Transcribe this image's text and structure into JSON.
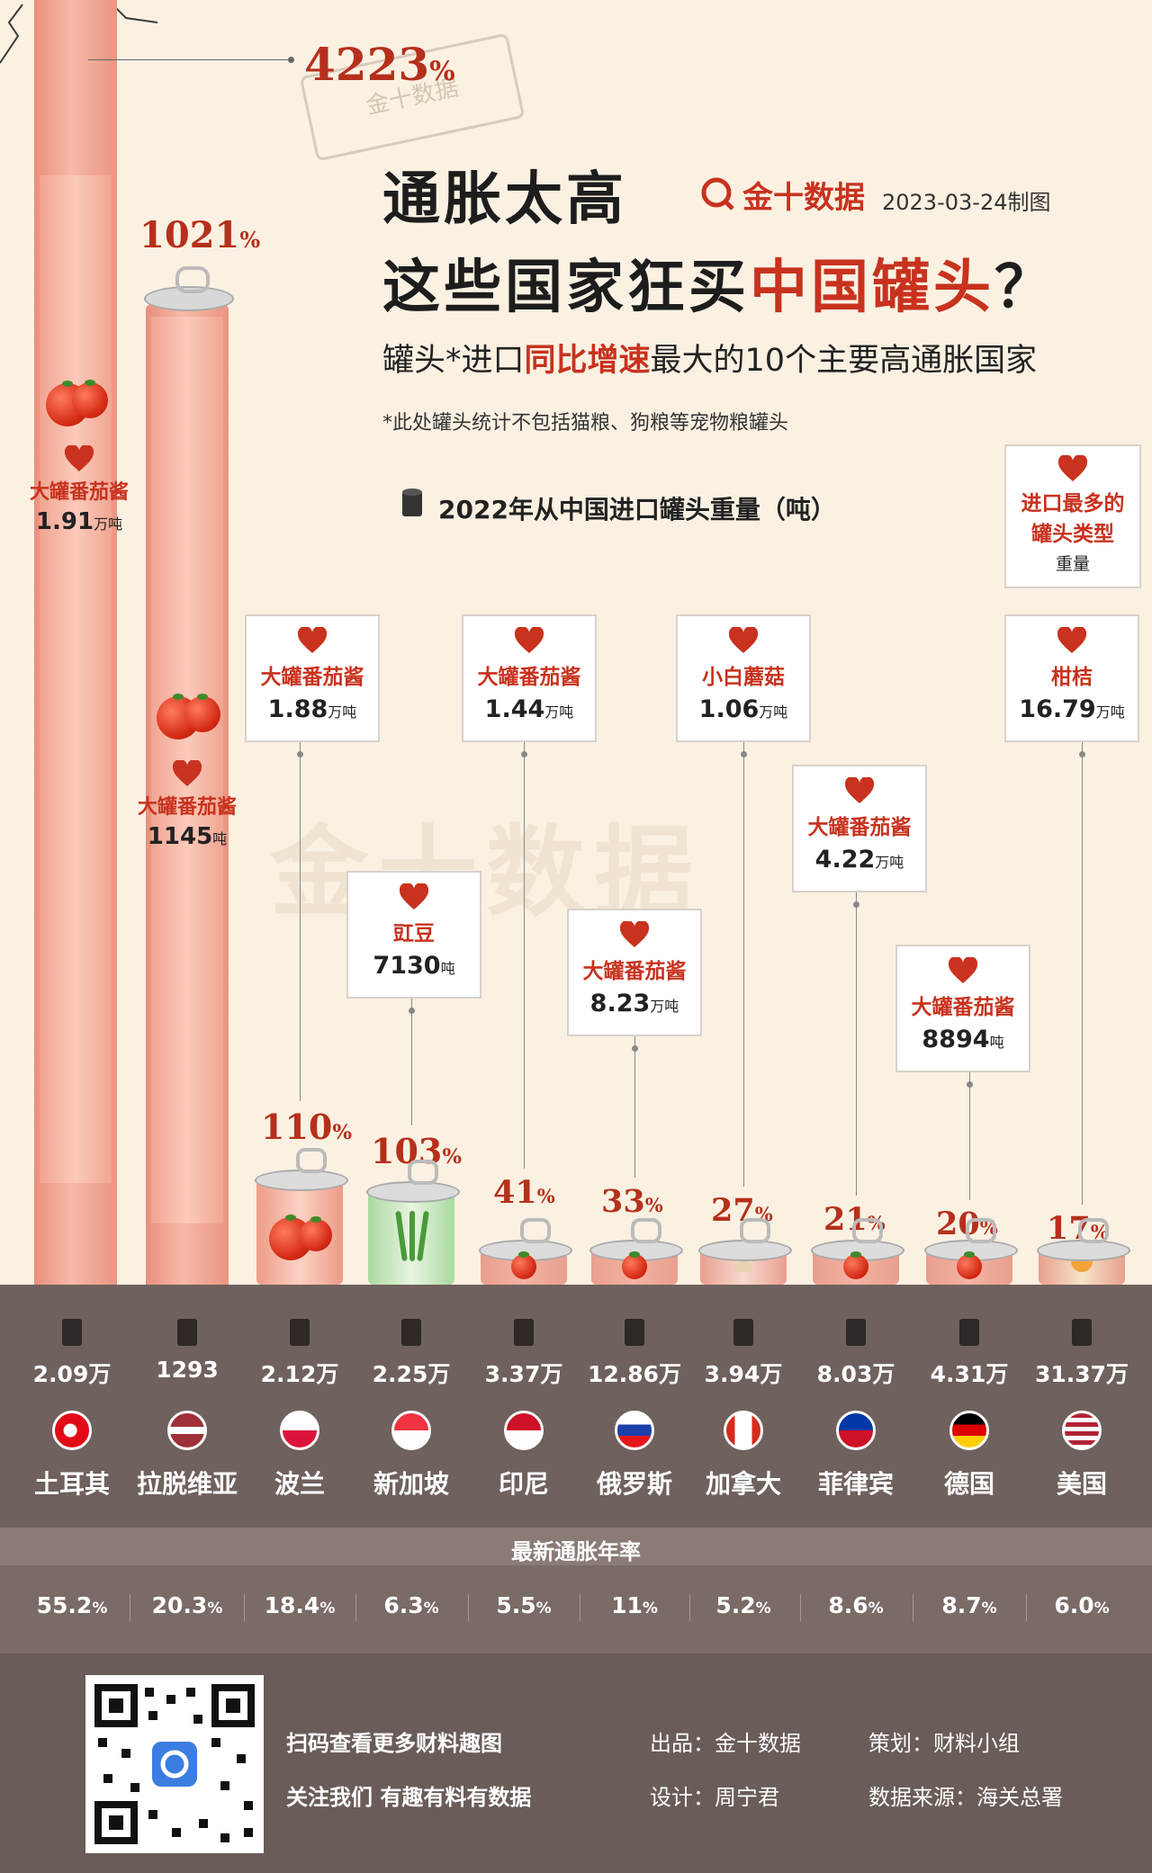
{
  "header": {
    "title_line1": "通胀太高",
    "title_line2_a": "这些国家狂买",
    "title_line2_b": "中国罐头",
    "title_line2_c": "？",
    "subtitle_a": "罐头*进口",
    "subtitle_b": "同比增速",
    "subtitle_c": "最大的10个主要高通胀国家",
    "note": "*此处罐头统计不包括猫粮、狗粮等宠物粮罐头",
    "brand": "金十数据",
    "date": "2023-03-24制图",
    "legend_title": "2022年从中国进口罐头重量（吨）",
    "stamp": "金十数据"
  },
  "type_legend": {
    "line1": "进口最多的",
    "line2": "罐头类型",
    "line3": "重量"
  },
  "chart_data": {
    "type": "bar",
    "title": "通胀太高 这些国家狂买中国罐头？",
    "subtitle": "罐头*进口同比增速最大的10个主要高通胀国家",
    "categories": [
      "土耳其",
      "拉脱维亚",
      "波兰",
      "新加坡",
      "印尼",
      "俄罗斯",
      "加拿大",
      "菲律宾",
      "德国",
      "美国"
    ],
    "series": [
      {
        "name": "同比增速",
        "values": [
          4223,
          1021,
          110,
          103,
          41,
          33,
          27,
          21,
          20,
          17
        ],
        "labels": [
          "4223",
          "1021",
          "110",
          "103",
          "41",
          "33",
          "27",
          "21",
          "20",
          "17"
        ],
        "unit": "%"
      },
      {
        "name": "2022年从中国进口罐头重量（吨）",
        "labels": [
          "2.09万",
          "1293",
          "2.12万",
          "2.25万",
          "3.37万",
          "12.86万",
          "3.94万",
          "8.03万",
          "4.31万",
          "31.37万"
        ]
      },
      {
        "name": "最新通胀年率",
        "values": [
          55.2,
          20.3,
          18.4,
          6.3,
          5.5,
          11,
          5.2,
          8.6,
          8.7,
          6.0
        ],
        "labels": [
          "55.2",
          "20.3",
          "18.4",
          "6.3",
          "5.5",
          "11",
          "5.2",
          "8.6",
          "8.7",
          "6.0"
        ],
        "unit": "%"
      }
    ],
    "top_type": [
      {
        "name": "大罐番茄酱",
        "amount": "1.91",
        "unit": "万吨"
      },
      {
        "name": "大罐番茄酱",
        "amount": "1145",
        "unit": "吨"
      },
      {
        "name": "大罐番茄酱",
        "amount": "1.88",
        "unit": "万吨"
      },
      {
        "name": "豇豆",
        "amount": "7130",
        "unit": "吨"
      },
      {
        "name": "大罐番茄酱",
        "amount": "1.44",
        "unit": "万吨"
      },
      {
        "name": "大罐番茄酱",
        "amount": "8.23",
        "unit": "万吨"
      },
      {
        "name": "小白蘑菇",
        "amount": "1.06",
        "unit": "万吨"
      },
      {
        "name": "大罐番茄酱",
        "amount": "4.22",
        "unit": "万吨"
      },
      {
        "name": "大罐番茄酱",
        "amount": "8894",
        "unit": "吨"
      },
      {
        "name": "柑桔",
        "amount": "16.79",
        "unit": "万吨"
      }
    ],
    "inflation_title": "最新通胀年率",
    "grid": false
  },
  "footer": {
    "line1": "扫码查看更多财料趣图",
    "line2": "关注我们 有趣有料有数据",
    "producer": "出品：金十数据",
    "designer": "设计：周宁君",
    "planner": "策划：财料小组",
    "source": "数据来源：海关总署"
  },
  "colors": {
    "background": "#fbf1e2",
    "accent": "#c8321e",
    "ground": "#6f615d",
    "pipe": "#f2a593"
  }
}
